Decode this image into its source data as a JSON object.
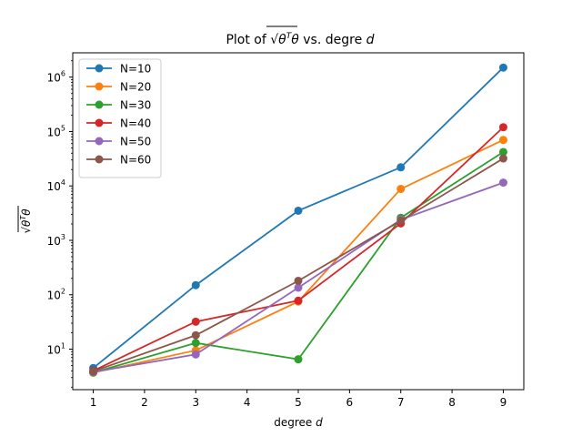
{
  "chart_data": {
    "type": "line",
    "title": "Plot of √θᵀθ vs. degre d",
    "title_parts": {
      "prefix": "Plot of ",
      "radicand_base": "θ",
      "radicand_sup": "T",
      "radicand_tail": "θ",
      "middle": " vs. degre ",
      "var": "d"
    },
    "xlabel": "degree d",
    "xlabel_parts": {
      "text": "degree ",
      "var": "d"
    },
    "ylabel": "√θᵀθ",
    "ylabel_parts": {
      "base": "θ",
      "sup": "T",
      "tail": "θ"
    },
    "yscale": "log",
    "xlim": [
      0.6,
      9.4
    ],
    "ylim": [
      1.8,
      2800000
    ],
    "x_ticks": [
      1,
      2,
      3,
      4,
      5,
      6,
      7,
      8,
      9
    ],
    "x_tick_labels": [
      "1",
      "2",
      "3",
      "4",
      "5",
      "6",
      "7",
      "8",
      "9"
    ],
    "y_ticks": [
      {
        "value": 10,
        "exp": "1"
      },
      {
        "value": 100,
        "exp": "2"
      },
      {
        "value": 1000,
        "exp": "3"
      },
      {
        "value": 10000,
        "exp": "4"
      },
      {
        "value": 100000,
        "exp": "5"
      },
      {
        "value": 1000000,
        "exp": "6"
      }
    ],
    "y_tick_base": "10",
    "grid": false,
    "legend_position": "upper-left",
    "x": [
      1,
      3,
      5,
      7,
      9
    ],
    "series": [
      {
        "name": "N=10",
        "color": "#1f77b4",
        "values": [
          4.5,
          150,
          3500,
          22000,
          1500000
        ]
      },
      {
        "name": "N=20",
        "color": "#ff7f0e",
        "values": [
          3.7,
          9.5,
          75,
          8800,
          70000
        ]
      },
      {
        "name": "N=30",
        "color": "#2ca02c",
        "values": [
          3.7,
          13,
          6.5,
          2600,
          42000
        ]
      },
      {
        "name": "N=40",
        "color": "#d62728",
        "values": [
          4.0,
          32,
          78,
          2050,
          120000
        ]
      },
      {
        "name": "N=50",
        "color": "#9467bd",
        "values": [
          3.8,
          8.0,
          135,
          2400,
          11500
        ]
      },
      {
        "name": "N=60",
        "color": "#8c564b",
        "values": [
          3.9,
          18,
          180,
          2300,
          32000
        ]
      }
    ]
  }
}
